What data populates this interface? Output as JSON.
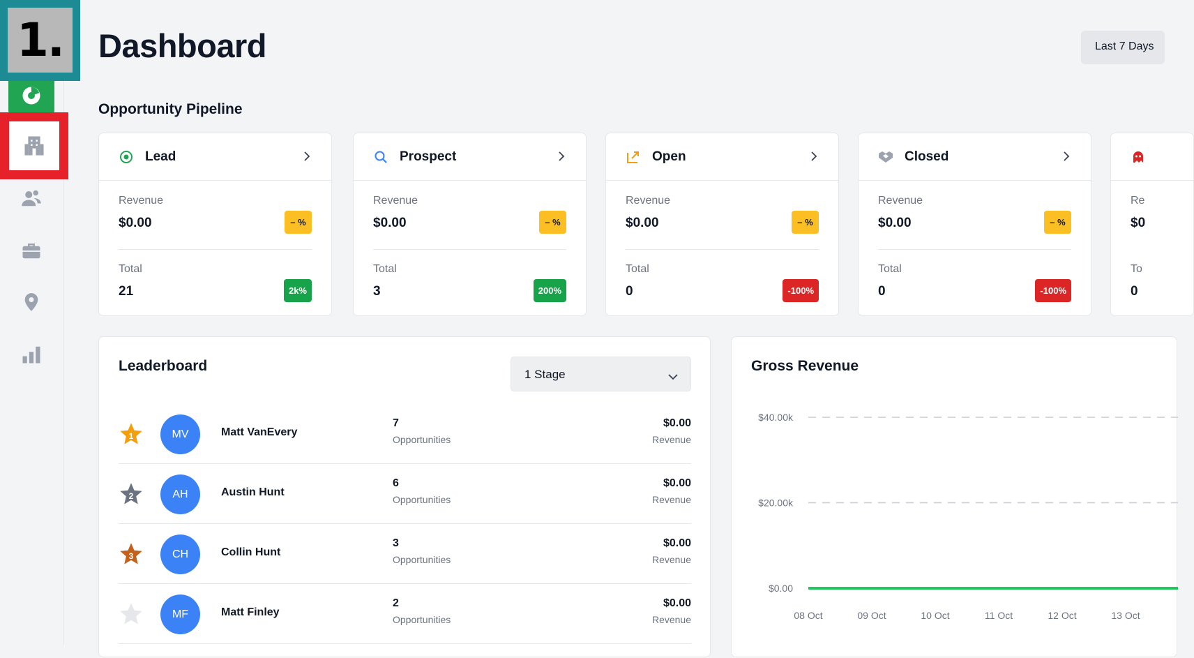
{
  "step_marker": "1.",
  "header": {
    "title": "Dashboard",
    "date_range": "Last 7 Days"
  },
  "sidebar": {
    "items": [
      {
        "name": "dashboard",
        "icon": "pie-chart-icon",
        "active": true
      },
      {
        "name": "opportunities",
        "icon": "building-icon",
        "highlighted": true
      },
      {
        "name": "contacts",
        "icon": "users-icon"
      },
      {
        "name": "jobs",
        "icon": "briefcase-icon"
      },
      {
        "name": "locations",
        "icon": "map-pin-icon"
      },
      {
        "name": "reports",
        "icon": "bar-chart-icon"
      }
    ]
  },
  "pipeline": {
    "title": "Opportunity Pipeline",
    "cards": [
      {
        "name": "Lead",
        "icon": "target-icon",
        "revenue_label": "Revenue",
        "revenue": "$0.00",
        "revenue_change": "– %",
        "total_label": "Total",
        "total": "21",
        "total_change": "2k%",
        "total_change_color": "#16a34a"
      },
      {
        "name": "Prospect",
        "icon": "search-icon",
        "revenue_label": "Revenue",
        "revenue": "$0.00",
        "revenue_change": "– %",
        "total_label": "Total",
        "total": "3",
        "total_change": "200%",
        "total_change_color": "#16a34a"
      },
      {
        "name": "Open",
        "icon": "external-link-icon",
        "revenue_label": "Revenue",
        "revenue": "$0.00",
        "revenue_change": "– %",
        "total_label": "Total",
        "total": "0",
        "total_change": "-100%",
        "total_change_color": "#dc2626"
      },
      {
        "name": "Closed",
        "icon": "handshake-icon",
        "revenue_label": "Revenue",
        "revenue": "$0.00",
        "revenue_change": "– %",
        "total_label": "Total",
        "total": "0",
        "total_change": "-100%",
        "total_change_color": "#dc2626"
      },
      {
        "name": "",
        "icon": "lost-icon",
        "revenue_label": "Re",
        "revenue": "$0",
        "total_label": "To",
        "total": "0"
      }
    ]
  },
  "leaderboard": {
    "title": "Leaderboard",
    "stage_select": "1 Stage",
    "rows": [
      {
        "rank": "1",
        "initials": "MV",
        "name": "Matt VanEvery",
        "opportunities": "7",
        "opp_label": "Opportunities",
        "revenue": "$0.00",
        "rev_label": "Revenue",
        "star_color": "#f59e0b"
      },
      {
        "rank": "2",
        "initials": "AH",
        "name": "Austin Hunt",
        "opportunities": "6",
        "opp_label": "Opportunities",
        "revenue": "$0.00",
        "rev_label": "Revenue",
        "star_color": "#6b7280"
      },
      {
        "rank": "3",
        "initials": "CH",
        "name": "Collin Hunt",
        "opportunities": "3",
        "opp_label": "Opportunities",
        "revenue": "$0.00",
        "rev_label": "Revenue",
        "star_color": "#c2601c"
      },
      {
        "rank": "",
        "initials": "MF",
        "name": "Matt Finley",
        "opportunities": "2",
        "opp_label": "Opportunities",
        "revenue": "$0.00",
        "rev_label": "Revenue",
        "star_color": "#e5e7eb"
      }
    ]
  },
  "gross_revenue": {
    "title": "Gross Revenue",
    "chart_data": {
      "type": "line",
      "x": [
        "08 Oct",
        "09 Oct",
        "10 Oct",
        "11 Oct",
        "12 Oct",
        "13 Oct"
      ],
      "series": [
        {
          "values": [
            0,
            0,
            0,
            0,
            0,
            0
          ],
          "color": "#22c55e"
        }
      ],
      "y_ticks": [
        "$40.00k",
        "$20.00k",
        "$0.00"
      ],
      "ylim": [
        0,
        40000
      ],
      "grid": "dashed-horizontal"
    }
  }
}
